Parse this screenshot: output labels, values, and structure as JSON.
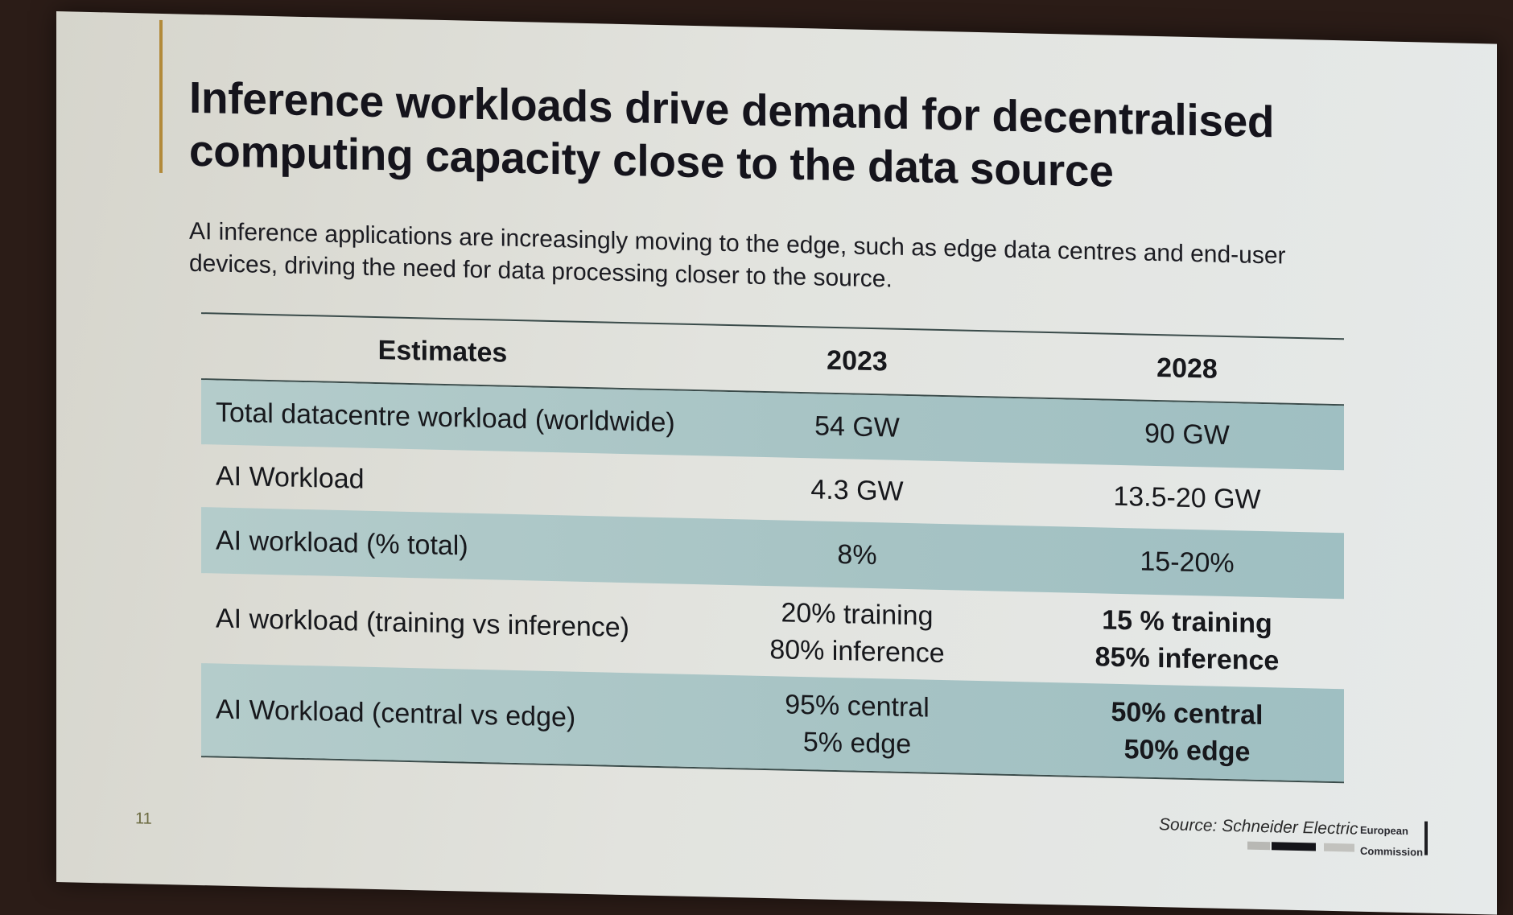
{
  "slide": {
    "title_line1": "Inference workloads drive demand for decentralised",
    "title_line2": "computing capacity close to the data source",
    "subtitle": "AI inference applications are increasingly moving to the edge, such as edge data centres and end-user devices, driving the need for data processing closer to the source.",
    "page_number": "11",
    "source": "Source: Schneider Electric",
    "logo_line1": "European",
    "logo_line2": "Commission"
  },
  "table": {
    "headers": [
      "Estimates",
      "2023",
      "2028"
    ],
    "rows": [
      {
        "label": "Total datacentre workload (worldwide)",
        "v2023": [
          "54 GW"
        ],
        "v2028": [
          "90 GW"
        ]
      },
      {
        "label": "AI Workload",
        "v2023": [
          "4.3 GW"
        ],
        "v2028": [
          "13.5-20 GW"
        ]
      },
      {
        "label": "AI workload (% total)",
        "v2023": [
          "8%"
        ],
        "v2028": [
          "15-20%"
        ]
      },
      {
        "label": "AI workload (training vs inference)",
        "v2023": [
          "20% training",
          "80% inference"
        ],
        "v2028": [
          "15 % training",
          "85% inference"
        ]
      },
      {
        "label": "AI Workload (central vs edge)",
        "v2023": [
          "95% central",
          "5% edge"
        ],
        "v2028": [
          "50% central",
          "50% edge"
        ]
      }
    ]
  }
}
